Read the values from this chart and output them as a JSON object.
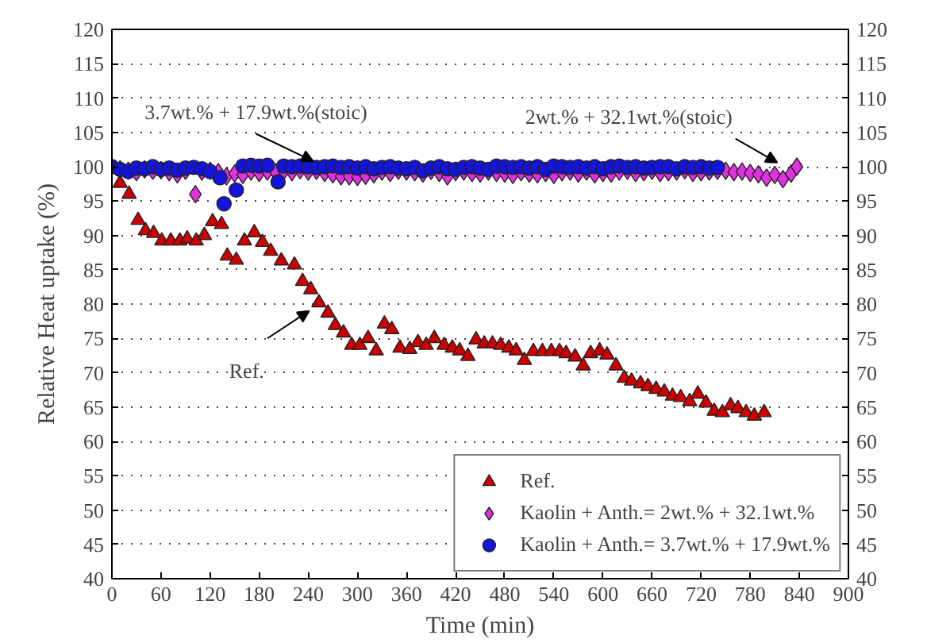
{
  "chart_data": {
    "type": "scatter",
    "xlabel": "Time (min)",
    "ylabel": "Relative Heat uptake (%)",
    "xlim": [
      0,
      900
    ],
    "xticks": [
      0,
      60,
      120,
      180,
      240,
      300,
      360,
      420,
      480,
      540,
      600,
      660,
      720,
      780,
      840,
      900
    ],
    "ylim": [
      40,
      120
    ],
    "yticks": [
      40,
      45,
      50,
      55,
      60,
      65,
      70,
      75,
      80,
      85,
      90,
      95,
      100,
      105,
      110,
      115,
      120
    ],
    "y2lim": [
      40,
      120
    ],
    "y2ticks": [
      40,
      45,
      50,
      55,
      60,
      65,
      70,
      75,
      80,
      85,
      90,
      95,
      100,
      105,
      110,
      115,
      120
    ],
    "grid": "y",
    "legend": "bottom right",
    "series": [
      {
        "name": "Ref.",
        "color": "#cc0000",
        "marker": "triangle",
        "x": [
          10,
          21,
          32,
          41,
          51,
          61,
          72,
          83,
          92,
          103,
          113,
          123,
          134,
          141,
          152,
          162,
          174,
          184,
          194,
          207,
          223,
          233,
          243,
          253,
          264,
          273,
          283,
          293,
          303,
          313,
          323,
          333,
          342,
          352,
          364,
          374,
          384,
          394,
          406,
          416,
          425,
          435,
          445,
          455,
          465,
          475,
          485,
          494,
          504,
          515,
          526,
          537,
          547,
          555,
          566,
          576,
          585,
          596,
          605,
          616,
          626,
          635,
          646,
          655,
          665,
          675,
          685,
          695,
          706,
          716,
          726,
          736,
          746,
          756,
          765,
          775,
          785,
          797
        ],
        "values": [
          97.6,
          96,
          92.2,
          90.7,
          90.3,
          89.2,
          89.2,
          89.2,
          89.5,
          89.2,
          90,
          92,
          91.6,
          87,
          86.4,
          89.2,
          90.4,
          89,
          87.7,
          86.3,
          85.7,
          83.3,
          82.1,
          80.2,
          78.7,
          76.9,
          75.8,
          74,
          74,
          75,
          73.2,
          77.1,
          76.3,
          73.6,
          73.4,
          74.4,
          74,
          75,
          74,
          73.6,
          73.2,
          72.4,
          74.8,
          74.2,
          74.2,
          74,
          73.6,
          73.2,
          71.8,
          73.1,
          73.1,
          73.1,
          73.1,
          72.8,
          72.3,
          71,
          72.8,
          73.2,
          72.6,
          71,
          69.2,
          68.8,
          68.4,
          68,
          67.6,
          67.2,
          66.6,
          66.4,
          65.8,
          66.9,
          65.6,
          64.4,
          64.2,
          65.2,
          64.8,
          64.2,
          63.7,
          64.2
        ]
      },
      {
        "name": "Kaolin + Anth.= 2wt.% + 32.1wt.%",
        "color": "#e030e0",
        "marker": "diamond",
        "x": [
          10,
          20,
          30,
          40,
          50,
          60,
          70,
          80,
          90,
          102,
          110,
          120,
          130,
          140,
          150,
          160,
          170,
          180,
          190,
          200,
          210,
          220,
          230,
          240,
          250,
          260,
          270,
          280,
          290,
          300,
          310,
          320,
          330,
          340,
          350,
          360,
          370,
          380,
          390,
          400,
          410,
          420,
          430,
          440,
          450,
          460,
          470,
          480,
          490,
          500,
          510,
          520,
          530,
          540,
          550,
          560,
          570,
          580,
          590,
          600,
          610,
          620,
          630,
          640,
          650,
          660,
          670,
          680,
          690,
          700,
          710,
          720,
          730,
          740,
          750,
          760,
          770,
          780,
          790,
          800,
          810,
          820,
          830,
          837
        ],
        "values": [
          99.6,
          99.4,
          99.2,
          99.6,
          99.4,
          99.5,
          99.2,
          98.9,
          99.4,
          96,
          99.3,
          99.4,
          99.2,
          98.6,
          99,
          98.8,
          99.3,
          99.1,
          99.3,
          99.2,
          99.4,
          99.2,
          99.5,
          99.3,
          99.4,
          99.1,
          98.9,
          98.6,
          98.6,
          98.5,
          98.7,
          98.9,
          99.3,
          99.1,
          99.4,
          99.3,
          99.2,
          99,
          99.4,
          99.1,
          98.6,
          99.2,
          99.3,
          99.1,
          99,
          99.3,
          99.1,
          99,
          98.8,
          99.2,
          99,
          98.9,
          99.1,
          98.8,
          99.2,
          99.3,
          99,
          99.3,
          98.9,
          99.1,
          99,
          99.3,
          99.4,
          99.1,
          99.2,
          99.4,
          99.1,
          99.2,
          99.3,
          99.5,
          99.1,
          99.2,
          99.3,
          99.4,
          99.4,
          99.2,
          99.3,
          99.1,
          98.9,
          98.4,
          98.8,
          98.2,
          99,
          100
        ]
      },
      {
        "name": "Kaolin + Anth.= 3.7wt.% + 17.9wt.%",
        "color": "#1414dc",
        "marker": "circle",
        "x": [
          0,
          10,
          20,
          30,
          40,
          50,
          60,
          70,
          80,
          90,
          100,
          110,
          120,
          132,
          137,
          152,
          160,
          170,
          180,
          190,
          203,
          210,
          220,
          230,
          240,
          250,
          260,
          270,
          280,
          290,
          300,
          310,
          320,
          330,
          340,
          350,
          360,
          370,
          380,
          390,
          400,
          410,
          420,
          430,
          440,
          450,
          460,
          470,
          480,
          490,
          500,
          510,
          520,
          530,
          540,
          550,
          560,
          570,
          580,
          590,
          600,
          610,
          620,
          630,
          640,
          650,
          660,
          670,
          680,
          690,
          700,
          710,
          720,
          730,
          740
        ],
        "values": [
          100,
          99.6,
          99.3,
          99.8,
          99.7,
          100,
          99.6,
          99.8,
          99.5,
          99.8,
          99.9,
          99.7,
          99.3,
          98.4,
          94.6,
          96.6,
          100.1,
          100.2,
          100.1,
          100.2,
          97.8,
          100.1,
          100,
          100.1,
          100,
          99.9,
          100,
          100.1,
          99.9,
          100,
          99.8,
          100,
          99.7,
          99.9,
          100,
          99.8,
          99.7,
          99.9,
          99.4,
          99.8,
          100,
          99.7,
          99.6,
          99.9,
          100,
          99.8,
          99.6,
          100.1,
          100,
          99.9,
          100,
          99.8,
          100,
          99.6,
          100.1,
          100,
          99.9,
          100,
          99.8,
          100,
          99.7,
          100,
          100.1,
          99.9,
          100,
          99.8,
          99.9,
          100,
          100,
          99.7,
          100,
          99.9,
          100,
          99.8,
          99.9
        ]
      }
    ],
    "annotations": [
      {
        "text": "3.7wt.% + 17.9wt.%(stoic)",
        "x": 246,
        "y": 100.8
      },
      {
        "text": "Ref.",
        "x": 241,
        "y": 79
      },
      {
        "text": "2wt.% + 32.1wt.%(stoic)",
        "x": 813,
        "y": 100.6
      }
    ]
  }
}
